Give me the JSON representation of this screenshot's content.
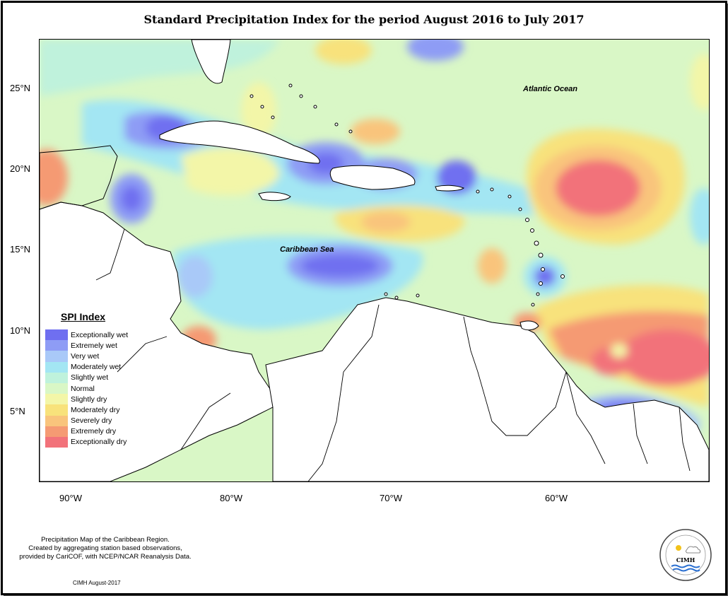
{
  "title": "Standard Precipitation Index for the period August 2016 to July 2017",
  "axes": {
    "lat_ticks": [
      "25°N",
      "20°N",
      "15°N",
      "10°N",
      "5°N"
    ],
    "lon_ticks": [
      "90°W",
      "80°W",
      "70°W",
      "60°W"
    ]
  },
  "map": {
    "lon_range": [
      -92,
      -50
    ],
    "lat_range": [
      1,
      28
    ],
    "labels": {
      "atlantic": "Atlantic Ocean",
      "caribbean": "Caribbean Sea"
    }
  },
  "legend": {
    "title": "SPI Index",
    "items": [
      {
        "label": "Exceptionally wet",
        "color": "#6f6ff0"
      },
      {
        "label": "Extremely wet",
        "color": "#8e9cf5"
      },
      {
        "label": "Very wet",
        "color": "#a9c9f8"
      },
      {
        "label": "Moderately wet",
        "color": "#a3e6f3"
      },
      {
        "label": "Slightly wet",
        "color": "#bff2dc"
      },
      {
        "label": "Normal",
        "color": "#d9f7c6"
      },
      {
        "label": "Slightly dry",
        "color": "#f3f6a8"
      },
      {
        "label": "Moderately dry",
        "color": "#f8e27b"
      },
      {
        "label": "Severely dry",
        "color": "#f9c47c"
      },
      {
        "label": "Extremely dry",
        "color": "#f59a73"
      },
      {
        "label": "Exceptionally dry",
        "color": "#f2727a"
      }
    ]
  },
  "footer": {
    "note_lines": [
      "Precipitation Map of the Caribbean Region.",
      "Created by aggregating station based observations,",
      "provided by CariCOF, with NCEP/NCAR Reanalysis Data."
    ],
    "credit": "CIMH August-2017",
    "logo_text": "CIMH"
  }
}
